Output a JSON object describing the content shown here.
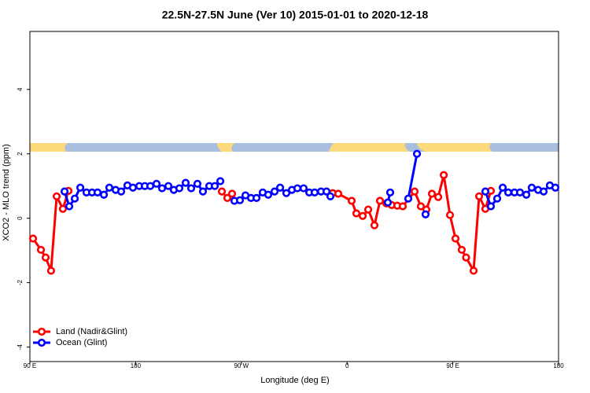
{
  "chart_data": {
    "type": "line",
    "title": "22.5N-27.5N June (Ver 10)   2015-01-01 to 2020-12-18",
    "x_label": "Longitude (deg E)",
    "y_label": "XCO2 - MLO trend (ppm)",
    "xlim": [
      90,
      540
    ],
    "ylim": [
      -4.45,
      5.8
    ],
    "xticks": [
      {
        "value": 90,
        "label": "90 E"
      },
      180,
      {
        "value": 270,
        "label": "90 W"
      },
      {
        "value": 360,
        "label": "0"
      },
      {
        "value": 450,
        "label": "90 E"
      },
      {
        "value": 540,
        "label": "180"
      }
    ],
    "yticks": [
      -4,
      -2,
      0,
      2,
      4
    ],
    "legend": "bottomleft",
    "series": [
      {
        "name": "Land (Nadir&Glint)",
        "color": "#ff0000",
        "x": [
          92.7,
          99.4,
          103.4,
          108,
          112.8,
          118.1,
          122.8,
          null,
          253.4,
          258.1,
          262.1,
          null,
          347.8,
          352.5,
          363.9,
          367.9,
          373.3,
          378,
          383.3,
          388,
          393.4,
          398,
          402.7,
          407.4,
          417.5,
          422.8,
          427.5,
          432.2,
          437.6,
          442.3,
          447.6,
          452.3,
          457.6,
          461.3,
          467.7,
          472.4,
          477.7,
          482.4
        ],
        "values": [
          -0.63,
          -0.98,
          -1.22,
          -1.63,
          0.68,
          0.29,
          0.85,
          null,
          0.83,
          0.63,
          0.76,
          null,
          0.78,
          0.76,
          0.54,
          0.15,
          0.07,
          0.27,
          -0.22,
          0.54,
          0.46,
          0.41,
          0.39,
          0.37,
          0.83,
          0.37,
          0.27,
          0.76,
          0.66,
          1.34,
          0.1,
          -0.63,
          -0.98,
          -1.22,
          -1.63,
          0.68,
          0.29,
          0.85
        ]
      },
      {
        "name": "Ocean (Glint)",
        "color": "#0000ff",
        "x": [
          119.5,
          123.5,
          128.2,
          132.9,
          138.2,
          142.9,
          147.6,
          153,
          157.6,
          163,
          167.7,
          173,
          177.7,
          183.1,
          187.8,
          192.5,
          197.8,
          202.5,
          207.9,
          212.5,
          217.2,
          222.6,
          227.3,
          232.6,
          237.3,
          242.7,
          247.4,
          252.1,
          null,
          264.1,
          268.8,
          273.5,
          278.2,
          282.9,
          288.2,
          292.9,
          298.3,
          303,
          308.3,
          313,
          317.7,
          323,
          327.8,
          332.4,
          337.8,
          342.5,
          345.8,
          null,
          394.7,
          396.7,
          null,
          412.1,
          419.5,
          null,
          426.8,
          null,
          477.7,
          482.4,
          487.8,
          492.5,
          497.2,
          502.5,
          507.2,
          512.6,
          517.2,
          522.6,
          527.3,
          532.6,
          537.3
        ],
        "values": [
          0.83,
          0.37,
          0.61,
          0.95,
          0.8,
          0.8,
          0.8,
          0.73,
          0.95,
          0.88,
          0.83,
          1.02,
          0.95,
          1.0,
          1.0,
          1.0,
          1.07,
          0.93,
          1.0,
          0.88,
          0.93,
          1.1,
          0.93,
          1.07,
          0.83,
          1.0,
          1.0,
          1.15,
          null,
          0.54,
          0.56,
          0.71,
          0.63,
          0.63,
          0.8,
          0.73,
          0.83,
          0.95,
          0.78,
          0.88,
          0.93,
          0.93,
          0.8,
          0.8,
          0.83,
          0.83,
          0.68,
          null,
          0.49,
          0.8,
          null,
          0.61,
          2.0,
          null,
          0.12,
          null,
          0.83,
          0.37,
          0.61,
          0.95,
          0.8,
          0.8,
          0.8,
          0.73,
          0.95,
          0.88,
          0.83,
          1.02,
          0.95
        ]
      }
    ]
  }
}
